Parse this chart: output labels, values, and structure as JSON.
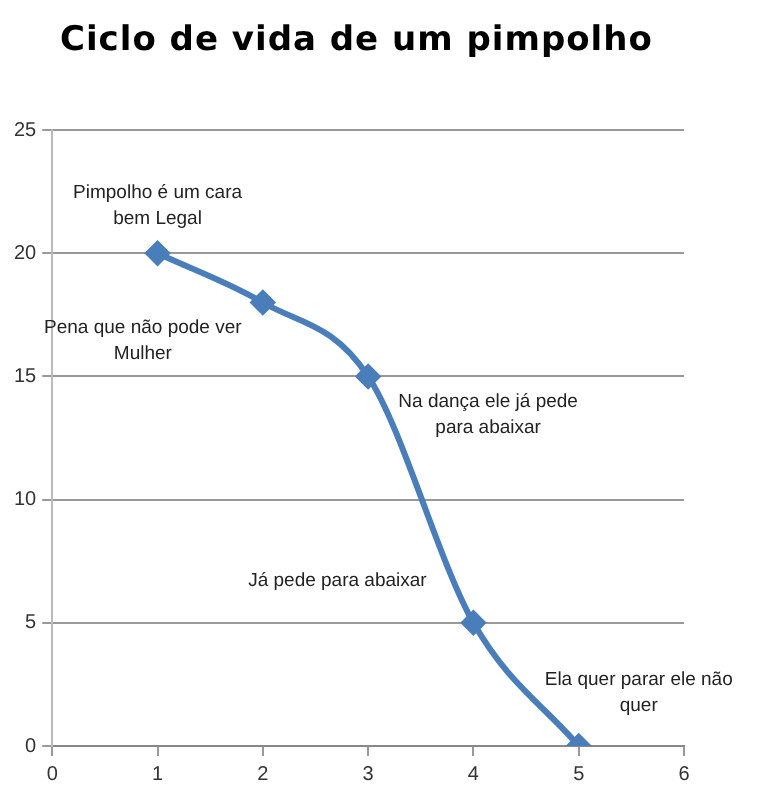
{
  "chart_data": {
    "type": "line",
    "title": "Ciclo de vida de um pimpolho",
    "x": [
      1,
      2,
      3,
      4,
      5
    ],
    "values": [
      20,
      18,
      15,
      5,
      0
    ],
    "color": "#4a7ebb",
    "xlim": [
      0,
      6
    ],
    "xticks": [
      0,
      1,
      2,
      3,
      4,
      5,
      6
    ],
    "ylim": [
      0,
      25
    ],
    "yticks": [
      0,
      5,
      10,
      15,
      20,
      25
    ],
    "grid": "y",
    "marker": "diamond",
    "line_style": "solid",
    "annotations": [
      {
        "text": "Pimpolho é um cara bem Legal",
        "x": 1,
        "y": 20
      },
      {
        "text": "Pena que não pode ver Mulher",
        "x": 2,
        "y": 18
      },
      {
        "text": "Na dança ele já pede para abaixar",
        "x": 3,
        "y": 15
      },
      {
        "text": "Já pede para abaixar",
        "x": 4,
        "y": 5
      },
      {
        "text": "Ela quer parar ele não quer",
        "x": 5,
        "y": 0
      }
    ]
  }
}
